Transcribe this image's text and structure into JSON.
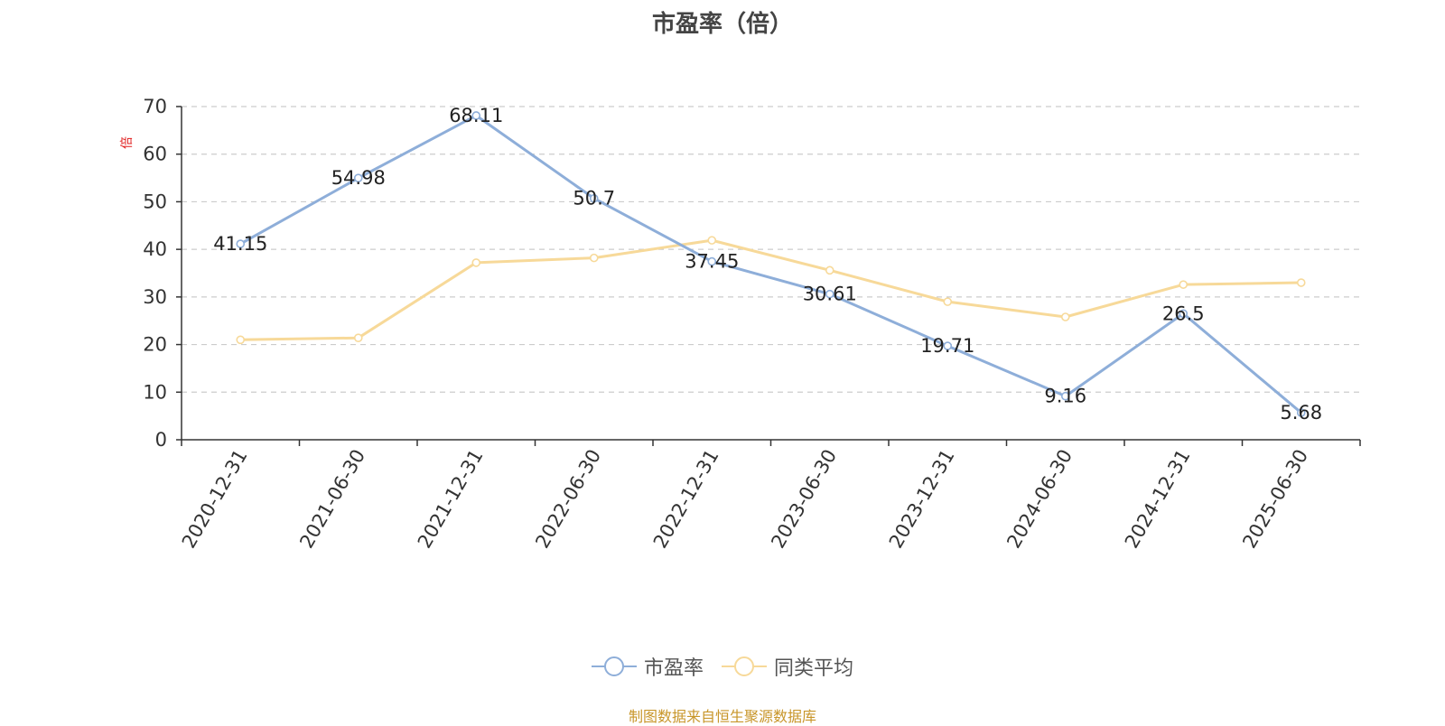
{
  "title": "市盈率（倍）",
  "source_note": "制图数据来自恒生聚源数据库",
  "colors": {
    "pe_line": "#8eaed9",
    "avg_line": "#f7d999",
    "grid": "#cccccc",
    "axis": "#333333",
    "unit": "#e02020",
    "label": "#222222",
    "tick": "#333333"
  },
  "chart_data": {
    "type": "line",
    "title": "市盈率（倍）",
    "ylabel": "倍",
    "ylim": [
      0,
      70
    ],
    "yticks": [
      "0",
      "10",
      "20",
      "30",
      "40",
      "50",
      "60",
      "70"
    ],
    "categories": [
      "2020-12-31",
      "2021-06-30",
      "2021-12-31",
      "2022-06-30",
      "2022-12-31",
      "2023-06-30",
      "2023-12-31",
      "2024-06-30",
      "2024-12-31",
      "2025-06-30"
    ],
    "grid": true,
    "legend_position": "bottom",
    "series": [
      {
        "name": "市盈率",
        "values": [
          41.15,
          54.98,
          68.11,
          50.7,
          37.45,
          30.61,
          19.71,
          9.16,
          26.5,
          5.68
        ],
        "labels": [
          "41.15",
          "54.98",
          "68.11",
          "50.7",
          "37.45",
          "30.61",
          "19.71",
          "9.16",
          "26.5",
          "5.68"
        ]
      },
      {
        "name": "同类平均",
        "values": [
          21.0,
          21.4,
          37.2,
          38.2,
          41.9,
          35.6,
          29.0,
          25.8,
          32.6,
          33.0
        ]
      }
    ]
  }
}
